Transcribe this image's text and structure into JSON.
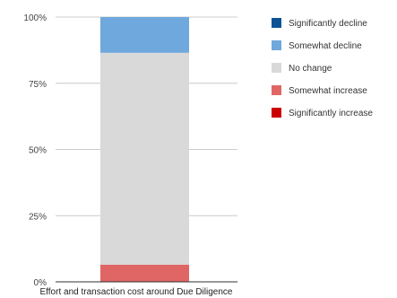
{
  "chart_data": {
    "type": "bar",
    "stacked": true,
    "normalized": true,
    "categories": [
      "Effort and transaction cost around Due Diligence"
    ],
    "series": [
      {
        "name": "Significantly increase",
        "color": "#cc0000",
        "values": [
          0
        ]
      },
      {
        "name": "Somewhat increase",
        "color": "#e06666",
        "values": [
          6.5
        ]
      },
      {
        "name": "No change",
        "color": "#d9d9d9",
        "values": [
          80
        ]
      },
      {
        "name": "Somewhat decline",
        "color": "#6fa8dc",
        "values": [
          13.5
        ]
      },
      {
        "name": "Significantly decline",
        "color": "#0b5394",
        "values": [
          0
        ]
      }
    ],
    "legend_order": [
      "Significantly decline",
      "Somewhat decline",
      "No change",
      "Somewhat increase",
      "Significantly increase"
    ],
    "legend_position": "right",
    "y_ticks": [
      "0%",
      "25%",
      "50%",
      "75%",
      "100%"
    ],
    "ylim": [
      0,
      100
    ],
    "grid": true
  }
}
